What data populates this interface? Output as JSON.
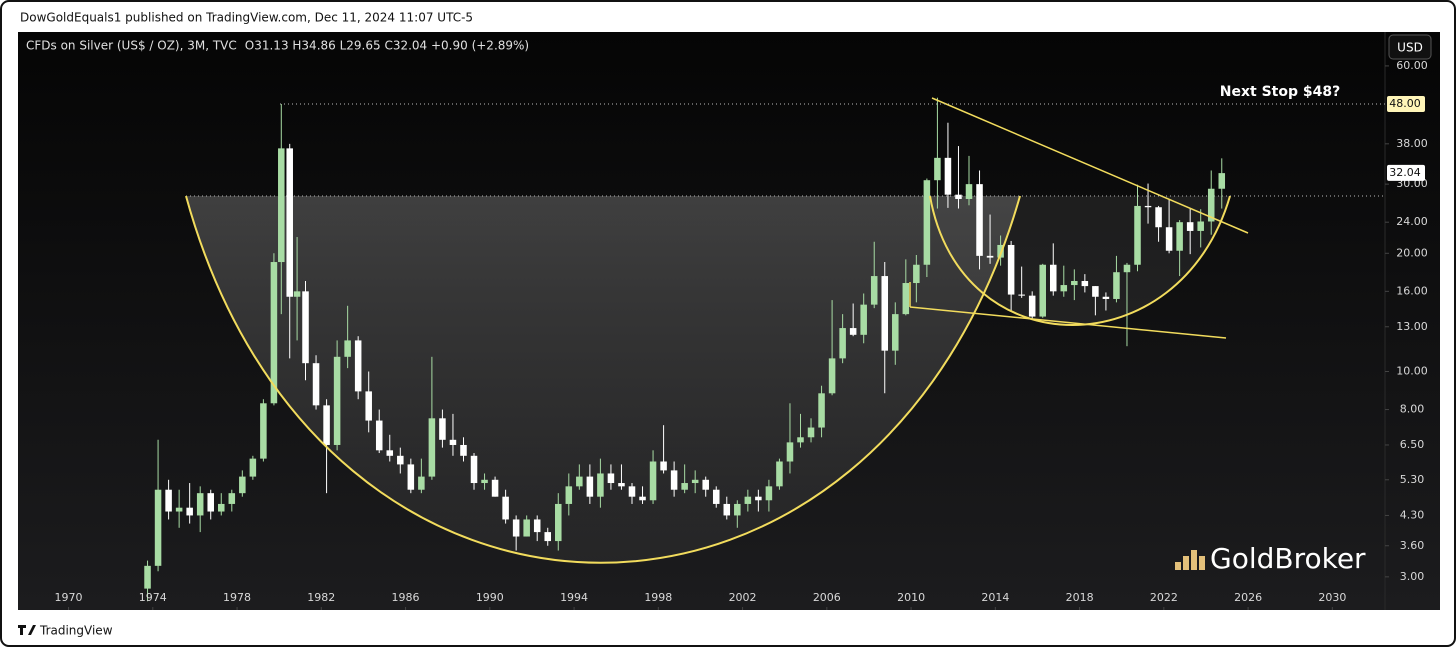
{
  "header": {
    "publisher": "DowGoldEquals1 published on TradingView.com, Dec 11, 2024 11:07 UTC-5"
  },
  "footer": {
    "brand": "TradingView"
  },
  "chart_data": {
    "type": "candlestick",
    "title": "CFDs on Silver (US$ / OZ), 3M, TVC",
    "quote": "O31.13  H34.86  L29.65  C32.04  +0.90 (+2.89%)",
    "currency": "USD",
    "watermark": "GoldBroker",
    "annotation": "Next Stop $48?",
    "log_scale": true,
    "up_color": "#a8dca4",
    "down_color": "#ffffff",
    "xlim": [
      1967.6,
      2032.5
    ],
    "ylim": [
      2.47,
      73.2
    ],
    "xticks": [
      1970,
      1974,
      1978,
      1982,
      1986,
      1990,
      1994,
      1998,
      2002,
      2006,
      2010,
      2014,
      2018,
      2022,
      2026,
      2030
    ],
    "yticks": [
      {
        "value": 3,
        "label": "3.00"
      },
      {
        "value": 3.6,
        "label": "3.60"
      },
      {
        "value": 4.3,
        "label": "4.30"
      },
      {
        "value": 5.3,
        "label": "5.30"
      },
      {
        "value": 6.5,
        "label": "6.50"
      },
      {
        "value": 8,
        "label": "8.00"
      },
      {
        "value": 10,
        "label": "10.00"
      },
      {
        "value": 13,
        "label": "13.00"
      },
      {
        "value": 16,
        "label": "16.00"
      },
      {
        "value": 20,
        "label": "20.00"
      },
      {
        "value": 24,
        "label": "24.00"
      },
      {
        "value": 30,
        "label": "30.00"
      },
      {
        "value": 38,
        "label": "38.00"
      },
      {
        "value": 60,
        "label": "60.00"
      }
    ],
    "target_price": {
      "value": 48,
      "label": "48.00"
    },
    "last_price": {
      "value": 32.04,
      "label": "32.04"
    },
    "x": [
      1973.75,
      1974.25,
      1974.75,
      1975.25,
      1975.75,
      1976.25,
      1976.75,
      1977.25,
      1977.75,
      1978.25,
      1978.75,
      1979.25,
      1979.75,
      1980.1,
      1980.5,
      1980.85,
      1981.25,
      1981.75,
      1982.25,
      1982.75,
      1983.25,
      1983.75,
      1984.25,
      1984.75,
      1985.25,
      1985.75,
      1986.25,
      1986.75,
      1987.25,
      1987.75,
      1988.25,
      1988.75,
      1989.25,
      1989.75,
      1990.25,
      1990.75,
      1991.25,
      1991.75,
      1992.25,
      1992.75,
      1993.25,
      1993.75,
      1994.25,
      1994.75,
      1995.25,
      1995.75,
      1996.25,
      1996.75,
      1997.25,
      1997.75,
      1998.25,
      1998.75,
      1999.25,
      1999.75,
      2000.25,
      2000.75,
      2001.25,
      2001.75,
      2002.25,
      2002.75,
      2003.25,
      2003.75,
      2004.25,
      2004.75,
      2005.25,
      2005.75,
      2006.25,
      2006.75,
      2007.25,
      2007.75,
      2008.25,
      2008.75,
      2009.25,
      2009.75,
      2010.25,
      2010.75,
      2011.25,
      2011.75,
      2012.25,
      2012.75,
      2013.25,
      2013.75,
      2014.25,
      2014.75,
      2015.25,
      2015.75,
      2016.25,
      2016.75,
      2017.25,
      2017.75,
      2018.25,
      2018.75,
      2019.25,
      2019.75,
      2020.25,
      2020.75,
      2021.25,
      2021.75,
      2022.25,
      2022.75,
      2023.25,
      2023.75,
      2024.25,
      2024.75
    ],
    "candles": [
      [
        2.8,
        3.3,
        2.6,
        3.2
      ],
      [
        3.2,
        6.7,
        3.1,
        5.0
      ],
      [
        5.0,
        5.3,
        4.2,
        4.4
      ],
      [
        4.4,
        5.0,
        4.0,
        4.5
      ],
      [
        4.5,
        5.2,
        4.1,
        4.3
      ],
      [
        4.3,
        5.1,
        3.9,
        4.9
      ],
      [
        4.9,
        5.0,
        4.2,
        4.4
      ],
      [
        4.4,
        4.9,
        4.3,
        4.6
      ],
      [
        4.6,
        5.0,
        4.4,
        4.9
      ],
      [
        4.9,
        5.6,
        4.8,
        5.4
      ],
      [
        5.4,
        6.1,
        5.3,
        6.0
      ],
      [
        6.0,
        8.5,
        5.9,
        8.3
      ],
      [
        8.3,
        20.0,
        8.2,
        19.0
      ],
      [
        19.0,
        48.0,
        14.0,
        37.0
      ],
      [
        37.0,
        38.0,
        10.8,
        15.5
      ],
      [
        15.5,
        22.0,
        12.0,
        16.0
      ],
      [
        16.0,
        17.0,
        9.5,
        10.5
      ],
      [
        10.5,
        11.0,
        8.0,
        8.2
      ],
      [
        8.2,
        8.5,
        4.9,
        6.5
      ],
      [
        6.5,
        12.0,
        6.3,
        10.9
      ],
      [
        10.9,
        14.7,
        10.2,
        12.0
      ],
      [
        12.0,
        12.3,
        8.5,
        8.9
      ],
      [
        8.9,
        10.0,
        7.0,
        7.5
      ],
      [
        7.5,
        8.0,
        6.2,
        6.3
      ],
      [
        6.3,
        6.9,
        5.9,
        6.1
      ],
      [
        6.1,
        6.4,
        5.5,
        5.8
      ],
      [
        5.8,
        6.0,
        4.9,
        5.0
      ],
      [
        5.0,
        6.0,
        4.9,
        5.4
      ],
      [
        5.4,
        10.9,
        5.3,
        7.6
      ],
      [
        7.6,
        8.0,
        6.4,
        6.7
      ],
      [
        6.7,
        7.8,
        6.1,
        6.5
      ],
      [
        6.5,
        6.8,
        5.9,
        6.1
      ],
      [
        6.1,
        6.2,
        5.0,
        5.2
      ],
      [
        5.2,
        5.5,
        5.0,
        5.3
      ],
      [
        5.3,
        5.4,
        4.8,
        4.8
      ],
      [
        4.8,
        5.0,
        4.1,
        4.2
      ],
      [
        4.2,
        4.3,
        3.5,
        3.8
      ],
      [
        3.8,
        4.3,
        3.8,
        4.2
      ],
      [
        4.2,
        4.3,
        3.7,
        3.9
      ],
      [
        3.9,
        4.0,
        3.6,
        3.7
      ],
      [
        3.7,
        4.9,
        3.5,
        4.6
      ],
      [
        4.6,
        5.5,
        4.3,
        5.1
      ],
      [
        5.1,
        5.8,
        5.0,
        5.4
      ],
      [
        5.4,
        5.8,
        4.6,
        4.8
      ],
      [
        4.8,
        6.0,
        4.5,
        5.5
      ],
      [
        5.5,
        5.8,
        5.0,
        5.2
      ],
      [
        5.2,
        5.8,
        5.0,
        5.1
      ],
      [
        5.1,
        5.2,
        4.6,
        4.8
      ],
      [
        4.8,
        5.1,
        4.6,
        4.7
      ],
      [
        4.7,
        6.3,
        4.6,
        5.9
      ],
      [
        5.9,
        7.3,
        5.5,
        5.6
      ],
      [
        5.6,
        5.9,
        4.8,
        5.0
      ],
      [
        5.0,
        5.8,
        4.9,
        5.2
      ],
      [
        5.2,
        5.6,
        4.9,
        5.3
      ],
      [
        5.3,
        5.4,
        4.8,
        5.0
      ],
      [
        5.0,
        5.1,
        4.5,
        4.6
      ],
      [
        4.6,
        4.8,
        4.2,
        4.3
      ],
      [
        4.3,
        4.7,
        4.0,
        4.6
      ],
      [
        4.6,
        5.0,
        4.4,
        4.8
      ],
      [
        4.8,
        5.0,
        4.4,
        4.7
      ],
      [
        4.7,
        5.3,
        4.4,
        5.1
      ],
      [
        5.1,
        6.0,
        5.0,
        5.9
      ],
      [
        5.9,
        8.3,
        5.5,
        6.6
      ],
      [
        6.6,
        7.8,
        6.4,
        6.8
      ],
      [
        6.8,
        7.6,
        6.6,
        7.2
      ],
      [
        7.2,
        9.2,
        6.8,
        8.8
      ],
      [
        8.8,
        15.2,
        8.7,
        10.8
      ],
      [
        10.8,
        14.0,
        10.5,
        12.9
      ],
      [
        12.9,
        14.9,
        12.3,
        12.4
      ],
      [
        12.4,
        15.8,
        11.8,
        14.8
      ],
      [
        14.8,
        21.4,
        14.5,
        17.5
      ],
      [
        17.5,
        19.0,
        8.8,
        11.3
      ],
      [
        11.3,
        15.0,
        10.4,
        14.0
      ],
      [
        14.0,
        19.3,
        13.9,
        16.8
      ],
      [
        16.8,
        19.8,
        15.0,
        18.7
      ],
      [
        18.7,
        31.0,
        17.4,
        30.7
      ],
      [
        30.7,
        49.8,
        26.0,
        35.0
      ],
      [
        35.0,
        43.0,
        26.1,
        28.2
      ],
      [
        28.2,
        37.5,
        26.0,
        27.5
      ],
      [
        27.5,
        35.4,
        26.5,
        30.0
      ],
      [
        30.0,
        32.5,
        18.2,
        19.7
      ],
      [
        19.7,
        25.1,
        18.8,
        19.5
      ],
      [
        19.5,
        22.2,
        18.6,
        21.0
      ],
      [
        21.0,
        21.5,
        14.2,
        15.7
      ],
      [
        15.7,
        18.5,
        15.4,
        15.6
      ],
      [
        15.6,
        16.0,
        13.6,
        13.8
      ],
      [
        13.8,
        18.8,
        13.7,
        18.7
      ],
      [
        18.7,
        21.2,
        15.6,
        16.0
      ],
      [
        16.0,
        18.6,
        15.5,
        16.6
      ],
      [
        16.6,
        18.2,
        15.2,
        17.0
      ],
      [
        17.0,
        17.7,
        15.9,
        16.5
      ],
      [
        16.5,
        16.5,
        13.9,
        15.5
      ],
      [
        15.5,
        15.9,
        14.3,
        15.3
      ],
      [
        15.3,
        19.7,
        15.0,
        17.9
      ],
      [
        17.9,
        18.9,
        11.6,
        18.7
      ],
      [
        18.7,
        29.9,
        18.0,
        26.4
      ],
      [
        26.4,
        30.1,
        23.8,
        26.2
      ],
      [
        26.2,
        26.4,
        21.4,
        23.3
      ],
      [
        23.3,
        27.5,
        20.0,
        20.3
      ],
      [
        20.3,
        24.3,
        17.5,
        24.0
      ],
      [
        24.0,
        26.1,
        19.9,
        22.8
      ],
      [
        22.8,
        25.9,
        20.7,
        24.1
      ],
      [
        24.1,
        32.5,
        22.3,
        29.2
      ],
      [
        29.2,
        34.9,
        26.0,
        32.0
      ]
    ]
  }
}
